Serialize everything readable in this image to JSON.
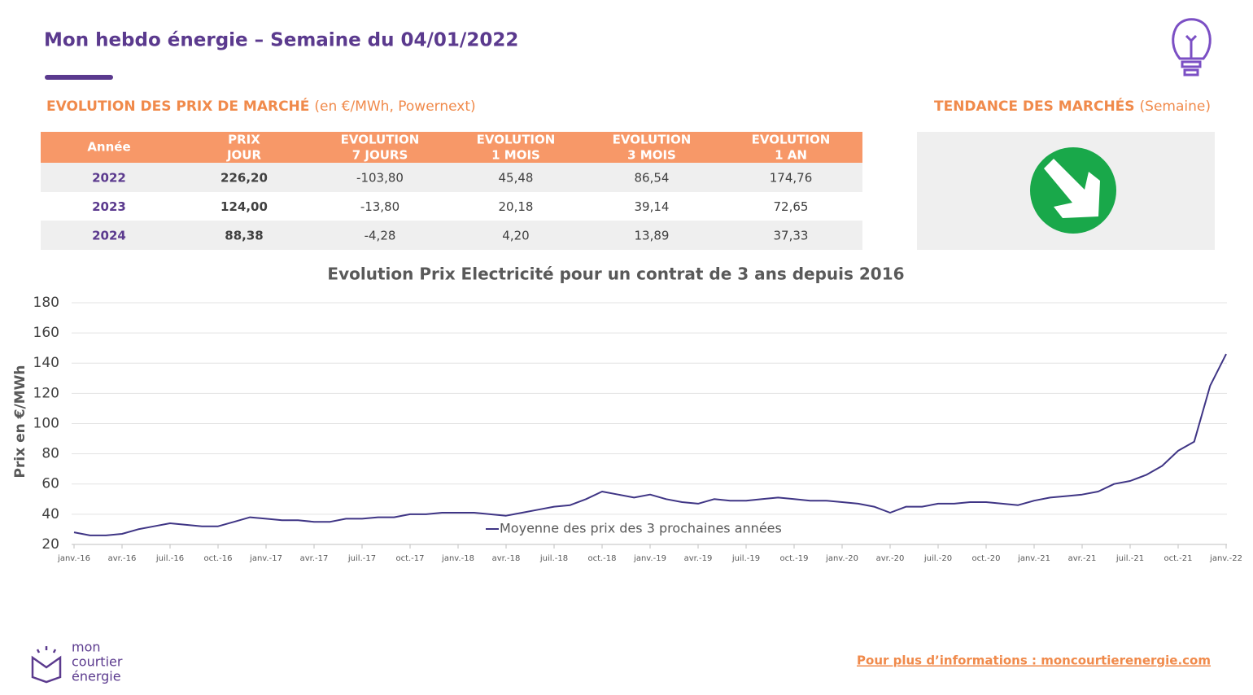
{
  "header": {
    "title": "Mon hebdo énergie – Semaine du 04/01/2022"
  },
  "table_section": {
    "title": "EVOLUTION DES PRIX DE MARCHÉ",
    "subtitle": "(en €/MWh, Powernext)"
  },
  "table": {
    "header": [
      [
        "Année"
      ],
      [
        "PRIX",
        "JOUR"
      ],
      [
        "EVOLUTION",
        "7 JOURS"
      ],
      [
        "EVOLUTION",
        "1 MOIS"
      ],
      [
        "EVOLUTION",
        "3 MOIS"
      ],
      [
        "EVOLUTION",
        "1 AN"
      ]
    ],
    "rows": [
      [
        "2022",
        "226,20",
        "-103,80",
        "45,48",
        "86,54",
        "174,76"
      ],
      [
        "2023",
        "124,00",
        "-13,80",
        "20,18",
        "39,14",
        "72,65"
      ],
      [
        "2024",
        "88,38",
        "-4,28",
        "4,20",
        "13,89",
        "37,33"
      ]
    ]
  },
  "trend": {
    "title": "TENDANCE DES MARCHÉS",
    "subtitle": "(Semaine)"
  },
  "chart_data": {
    "type": "line",
    "title": "Evolution Prix Electricité pour un contrat de 3 ans depuis 2016",
    "y_label": "Prix en €/MWh",
    "categories": [
      "janv.-16",
      null,
      null,
      "avr.-16",
      null,
      null,
      "juil.-16",
      null,
      null,
      "oct.-16",
      null,
      null,
      "janv.-17",
      null,
      null,
      "avr.-17",
      null,
      null,
      "juil.-17",
      null,
      null,
      "oct.-17",
      null,
      null,
      "janv.-18",
      null,
      null,
      "avr.-18",
      null,
      null,
      "juil.-18",
      null,
      null,
      "oct.-18",
      null,
      null,
      "janv.-19",
      null,
      null,
      "avr.-19",
      null,
      null,
      "juil.-19",
      null,
      null,
      "oct.-19",
      null,
      null,
      "janv.-20",
      null,
      null,
      "avr.-20",
      null,
      null,
      "juil.-20",
      null,
      null,
      "oct.-20",
      null,
      null,
      "janv.-21",
      null,
      null,
      "avr.-21",
      null,
      null,
      "juil.-21",
      null,
      null,
      "oct.-21",
      null,
      null,
      "janv.-22"
    ],
    "series": [
      {
        "name": "Moyenne des prix des 3 prochaines années",
        "color": "#3f3585",
        "values": [
          28,
          26,
          26,
          27,
          30,
          32,
          34,
          33,
          32,
          32,
          35,
          38,
          37,
          36,
          36,
          35,
          35,
          37,
          37,
          38,
          38,
          40,
          40,
          41,
          41,
          41,
          40,
          39,
          41,
          43,
          45,
          46,
          50,
          55,
          53,
          51,
          53,
          50,
          48,
          47,
          50,
          49,
          49,
          50,
          51,
          50,
          49,
          49,
          48,
          47,
          45,
          41,
          45,
          45,
          47,
          47,
          48,
          48,
          47,
          46,
          49,
          51,
          52,
          53,
          55,
          60,
          62,
          66,
          72,
          82,
          88,
          125,
          146
        ]
      }
    ],
    "ylim": [
      20,
      190
    ],
    "yticks": [
      20,
      40,
      60,
      80,
      100,
      120,
      140,
      160,
      180
    ],
    "grid": true
  },
  "footer": {
    "logo": [
      "mon",
      "courtier",
      "énergie"
    ],
    "link": "Pour plus d’informations : moncourtierenergie.com"
  }
}
